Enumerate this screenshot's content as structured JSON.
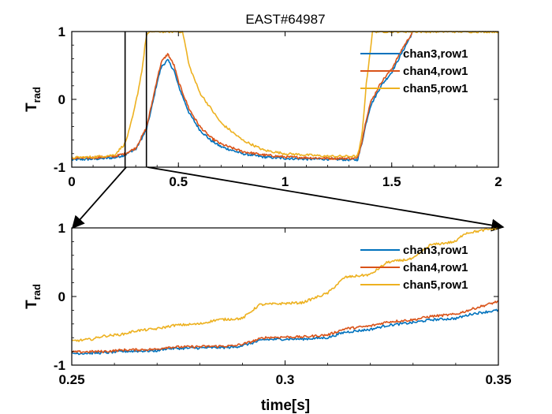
{
  "chart_data": [
    {
      "type": "line",
      "title": "EAST#64987",
      "xlabel": "",
      "ylabel": "T",
      "ylabel_sub": "rad",
      "xlim": [
        0,
        2
      ],
      "ylim": [
        -1,
        1
      ],
      "xticks": [
        0,
        0.5,
        1,
        1.5,
        2
      ],
      "xtick_labels": [
        "0",
        "0.5",
        "1",
        "1.5",
        "2"
      ],
      "yticks": [
        -1,
        0,
        1
      ],
      "ytick_labels": [
        "-1",
        "0",
        "1"
      ],
      "grid": false,
      "legend_position": "top-right",
      "highlight_window": [
        0.25,
        0.35
      ],
      "series": [
        {
          "name": "chan3,row1",
          "color": "#0072BD",
          "x": [
            0,
            0.1,
            0.2,
            0.25,
            0.28,
            0.3,
            0.32,
            0.35,
            0.38,
            0.4,
            0.42,
            0.45,
            0.48,
            0.5,
            0.55,
            0.6,
            0.65,
            0.7,
            0.8,
            0.9,
            1.0,
            1.1,
            1.2,
            1.3,
            1.34,
            1.36,
            1.38,
            1.4,
            1.45,
            1.5,
            1.55,
            1.6
          ],
          "y": [
            -0.89,
            -0.88,
            -0.86,
            -0.82,
            -0.76,
            -0.74,
            -0.62,
            -0.45,
            -0.05,
            0.25,
            0.48,
            0.58,
            0.42,
            0.2,
            -0.2,
            -0.45,
            -0.6,
            -0.7,
            -0.8,
            -0.85,
            -0.87,
            -0.88,
            -0.88,
            -0.89,
            -0.89,
            -0.65,
            -0.35,
            -0.1,
            0.2,
            0.4,
            0.7,
            1.0
          ]
        },
        {
          "name": "chan4,row1",
          "color": "#D95319",
          "x": [
            0,
            0.1,
            0.2,
            0.25,
            0.28,
            0.3,
            0.32,
            0.35,
            0.38,
            0.4,
            0.42,
            0.45,
            0.48,
            0.5,
            0.55,
            0.6,
            0.65,
            0.7,
            0.8,
            0.9,
            1.0,
            1.1,
            1.2,
            1.3,
            1.34,
            1.36,
            1.38,
            1.4,
            1.45,
            1.5,
            1.55,
            1.6
          ],
          "y": [
            -0.87,
            -0.86,
            -0.84,
            -0.8,
            -0.75,
            -0.72,
            -0.6,
            -0.42,
            0.0,
            0.3,
            0.55,
            0.67,
            0.5,
            0.26,
            -0.14,
            -0.4,
            -0.56,
            -0.66,
            -0.77,
            -0.82,
            -0.85,
            -0.86,
            -0.87,
            -0.87,
            -0.87,
            -0.62,
            -0.3,
            -0.05,
            0.25,
            0.45,
            0.75,
            1.0
          ]
        },
        {
          "name": "chan5,row1",
          "color": "#EDB120",
          "x": [
            0,
            0.1,
            0.2,
            0.25,
            0.27,
            0.29,
            0.31,
            0.33,
            0.35,
            0.37,
            0.4,
            0.45,
            0.5,
            0.52,
            0.55,
            0.6,
            0.7,
            0.8,
            0.9,
            1.0,
            1.1,
            1.2,
            1.3,
            1.34,
            1.36,
            1.38,
            1.41,
            1.45,
            1.5,
            1.55,
            2.0
          ],
          "y": [
            -0.86,
            -0.85,
            -0.82,
            -0.65,
            -0.45,
            -0.2,
            0.1,
            0.45,
            0.95,
            1.0,
            1.0,
            1.0,
            1.0,
            1.0,
            0.5,
            0.1,
            -0.35,
            -0.6,
            -0.75,
            -0.8,
            -0.82,
            -0.84,
            -0.84,
            -0.84,
            -0.55,
            0.2,
            1.0,
            1.0,
            1.0,
            1.0,
            1.0
          ]
        }
      ]
    },
    {
      "type": "line",
      "title": "",
      "xlabel": "time[s]",
      "ylabel": "T",
      "ylabel_sub": "rad",
      "xlim": [
        0.25,
        0.35
      ],
      "ylim": [
        -1,
        1
      ],
      "xticks": [
        0.25,
        0.3,
        0.35
      ],
      "xtick_labels": [
        "0.25",
        "0.3",
        "0.35"
      ],
      "yticks": [
        -1,
        0,
        1
      ],
      "ytick_labels": [
        "-1",
        "0",
        "1"
      ],
      "grid": false,
      "legend_position": "top-right",
      "series": [
        {
          "name": "chan3,row1",
          "color": "#0072BD",
          "x": [
            0.25,
            0.258,
            0.262,
            0.27,
            0.272,
            0.28,
            0.288,
            0.291,
            0.295,
            0.3,
            0.304,
            0.31,
            0.314,
            0.32,
            0.324,
            0.33,
            0.334,
            0.34,
            0.344,
            0.35
          ],
          "y": [
            -0.83,
            -0.82,
            -0.8,
            -0.79,
            -0.76,
            -0.75,
            -0.74,
            -0.7,
            -0.63,
            -0.62,
            -0.62,
            -0.6,
            -0.52,
            -0.48,
            -0.42,
            -0.38,
            -0.34,
            -0.32,
            -0.25,
            -0.2
          ]
        },
        {
          "name": "chan4,row1",
          "color": "#D95319",
          "x": [
            0.25,
            0.258,
            0.262,
            0.27,
            0.272,
            0.28,
            0.288,
            0.291,
            0.295,
            0.3,
            0.304,
            0.31,
            0.314,
            0.32,
            0.324,
            0.33,
            0.334,
            0.34,
            0.344,
            0.35
          ],
          "y": [
            -0.81,
            -0.8,
            -0.78,
            -0.77,
            -0.74,
            -0.73,
            -0.72,
            -0.68,
            -0.6,
            -0.59,
            -0.59,
            -0.56,
            -0.47,
            -0.43,
            -0.37,
            -0.34,
            -0.29,
            -0.26,
            -0.18,
            -0.07
          ]
        },
        {
          "name": "chan5,row1",
          "color": "#EDB120",
          "x": [
            0.25,
            0.255,
            0.257,
            0.262,
            0.265,
            0.27,
            0.274,
            0.28,
            0.284,
            0.29,
            0.294,
            0.3,
            0.304,
            0.31,
            0.314,
            0.32,
            0.324,
            0.33,
            0.334,
            0.34,
            0.342,
            0.347,
            0.35
          ],
          "y": [
            -0.65,
            -0.62,
            -0.58,
            -0.55,
            -0.5,
            -0.47,
            -0.42,
            -0.4,
            -0.34,
            -0.32,
            -0.12,
            -0.1,
            -0.09,
            0.05,
            0.28,
            0.32,
            0.5,
            0.55,
            0.75,
            0.8,
            0.92,
            0.97,
            1.0
          ]
        }
      ]
    }
  ]
}
